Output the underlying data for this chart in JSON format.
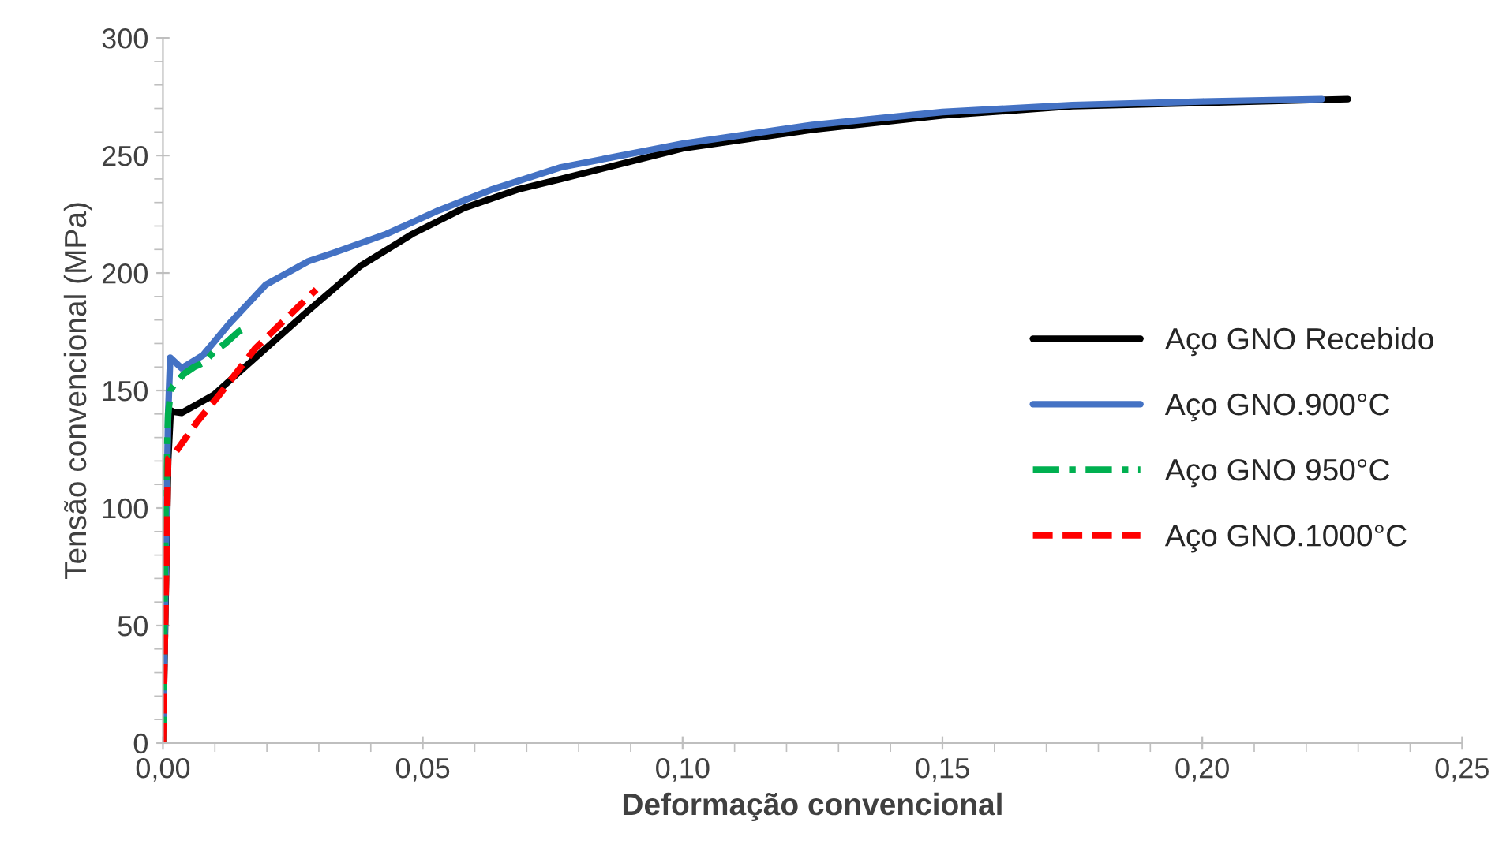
{
  "chart_data": {
    "type": "line",
    "xlabel": "Deformação convencional",
    "ylabel": "Tensão convencional (MPa)",
    "xlim": [
      0,
      0.25
    ],
    "ylim": [
      0,
      300
    ],
    "xticks": [
      {
        "value": 0,
        "label": "0,00"
      },
      {
        "value": 0.05,
        "label": "0,05"
      },
      {
        "value": 0.1,
        "label": "0,10"
      },
      {
        "value": 0.15,
        "label": "0,15"
      },
      {
        "value": 0.2,
        "label": "0,20"
      },
      {
        "value": 0.25,
        "label": "0,25"
      }
    ],
    "yticks": [
      0,
      50,
      100,
      150,
      200,
      250,
      300
    ],
    "grid": false,
    "legend": "right",
    "series": [
      {
        "name": "Aço GNO Recebido",
        "color": "#000000",
        "line_style": "solid",
        "x": [
          0,
          0.0005,
          0.001,
          0.0015,
          0.002,
          0.0036,
          0.0097,
          0.0178,
          0.028,
          0.038,
          0.048,
          0.058,
          0.0684,
          0.0766,
          0.1,
          0.125,
          0.15,
          0.175,
          0.228
        ],
        "values": [
          0,
          60,
          120,
          141.5,
          141,
          140.5,
          148,
          164,
          184,
          203,
          216.6,
          227.7,
          235.6,
          240,
          253,
          261,
          267,
          271,
          274
        ]
      },
      {
        "name": "Aço GNO.900°C",
        "color": "#4472c4",
        "line_style": "solid",
        "x": [
          0,
          0.0005,
          0.001,
          0.0014,
          0.0036,
          0.0077,
          0.0128,
          0.0198,
          0.028,
          0.033,
          0.043,
          0.053,
          0.0634,
          0.0766,
          0.1,
          0.125,
          0.15,
          0.175,
          0.2,
          0.223
        ],
        "values": [
          0,
          70,
          140,
          164,
          159.5,
          165,
          178.5,
          195,
          205,
          208.7,
          216.6,
          226.6,
          235.6,
          245,
          255,
          263,
          268.5,
          271.5,
          273,
          274
        ]
      },
      {
        "name": "Aço GNO 950°C",
        "color": "#00b050",
        "line_style": "dashdot",
        "x": [
          0,
          0.0005,
          0.001,
          0.0015,
          0.002,
          0.004,
          0.006,
          0.008,
          0.01,
          0.012,
          0.0145,
          0.0158
        ],
        "values": [
          0,
          100,
          140,
          150,
          152,
          157,
          160,
          162,
          167,
          170,
          175,
          176.5
        ]
      },
      {
        "name": "Aço GNO.1000°C",
        "color": "#ff0000",
        "line_style": "dashed",
        "x": [
          0,
          0.0005,
          0.001,
          0.0025,
          0.0067,
          0.0108,
          0.0178,
          0.0295
        ],
        "values": [
          0,
          60,
          121,
          124,
          137,
          148,
          168,
          193
        ]
      }
    ]
  }
}
